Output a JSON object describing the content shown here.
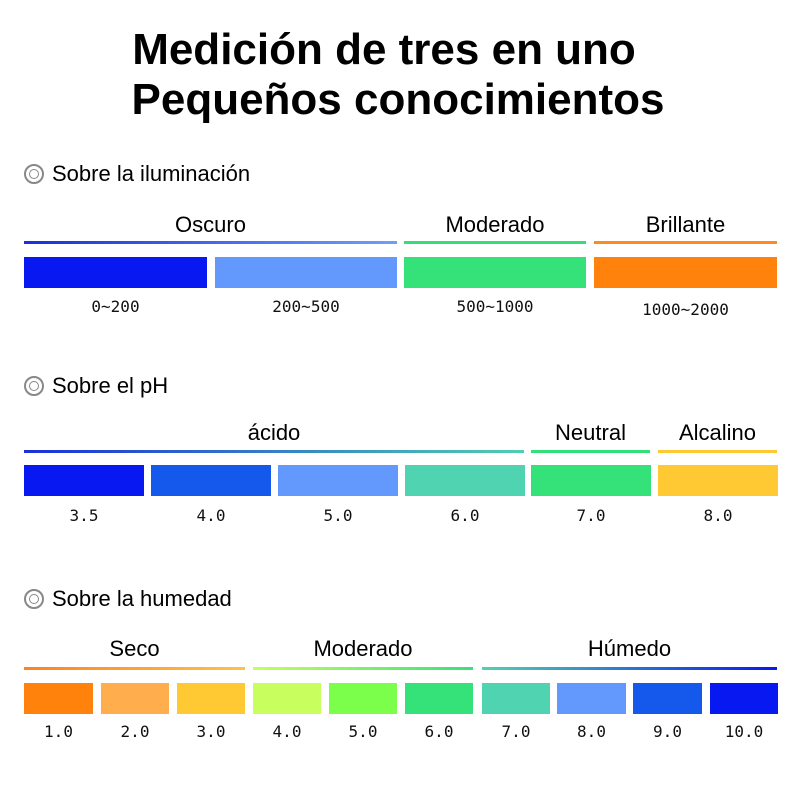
{
  "title": {
    "line1": "Medición de tres en uno",
    "line2": "Pequeños conocimientos"
  },
  "sections": [
    {
      "heading": "Sobre la iluminación",
      "icon": "double-circle-bullet-icon",
      "groups": [
        {
          "label": "Oscuro",
          "line_colors": [
            "#1a2fd9",
            "#6f9dff"
          ]
        },
        {
          "label": "Moderado",
          "line_colors": [
            "#33df78",
            "#33df78"
          ]
        },
        {
          "label": "Brillante",
          "line_colors": [
            "#ff8a1e",
            "#ff8a1e"
          ]
        }
      ],
      "swatches": [
        {
          "value": "0~200",
          "color": "#0818f0"
        },
        {
          "value": "200~500",
          "color": "#6398fc"
        },
        {
          "value": "500~1000",
          "color": "#35e27a"
        },
        {
          "value": "1000~2000",
          "color": "#ff820c"
        }
      ]
    },
    {
      "heading": "Sobre el pH",
      "icon": "double-circle-bullet-icon",
      "groups": [
        {
          "label": "ácido",
          "line_colors": [
            "#1a2fd9",
            "#4fcfb2"
          ]
        },
        {
          "label": "Neutral",
          "line_colors": [
            "#33df78",
            "#33df78"
          ]
        },
        {
          "label": "Alcalino",
          "line_colors": [
            "#ffc933",
            "#ffc933"
          ]
        }
      ],
      "swatches": [
        {
          "value": "3.5",
          "color": "#0818f0"
        },
        {
          "value": "4.0",
          "color": "#1558ec"
        },
        {
          "value": "5.0",
          "color": "#6398fc"
        },
        {
          "value": "6.0",
          "color": "#4fd3b1"
        },
        {
          "value": "7.0",
          "color": "#35e27a"
        },
        {
          "value": "8.0",
          "color": "#ffc933"
        }
      ]
    },
    {
      "heading": "Sobre la humedad",
      "icon": "double-circle-bullet-icon",
      "groups": [
        {
          "label": "Seco",
          "line_colors": [
            "#ff821e",
            "#ffc14a"
          ]
        },
        {
          "label": "Moderado",
          "line_colors": [
            "#c6ff5c",
            "#35e27a"
          ]
        },
        {
          "label": "Húmedo",
          "line_colors": [
            "#4fd3b1",
            "#0818f0"
          ]
        }
      ],
      "swatches": [
        {
          "value": "1.0",
          "color": "#ff820c"
        },
        {
          "value": "2.0",
          "color": "#ffad4d"
        },
        {
          "value": "3.0",
          "color": "#ffc933"
        },
        {
          "value": "4.0",
          "color": "#c8ff5e"
        },
        {
          "value": "5.0",
          "color": "#7cff4a"
        },
        {
          "value": "6.0",
          "color": "#35e27a"
        },
        {
          "value": "7.0",
          "color": "#4fd3b1"
        },
        {
          "value": "8.0",
          "color": "#6398fc"
        },
        {
          "value": "9.0",
          "color": "#1558ec"
        },
        {
          "value": "10.0",
          "color": "#0818f0"
        }
      ]
    }
  ]
}
